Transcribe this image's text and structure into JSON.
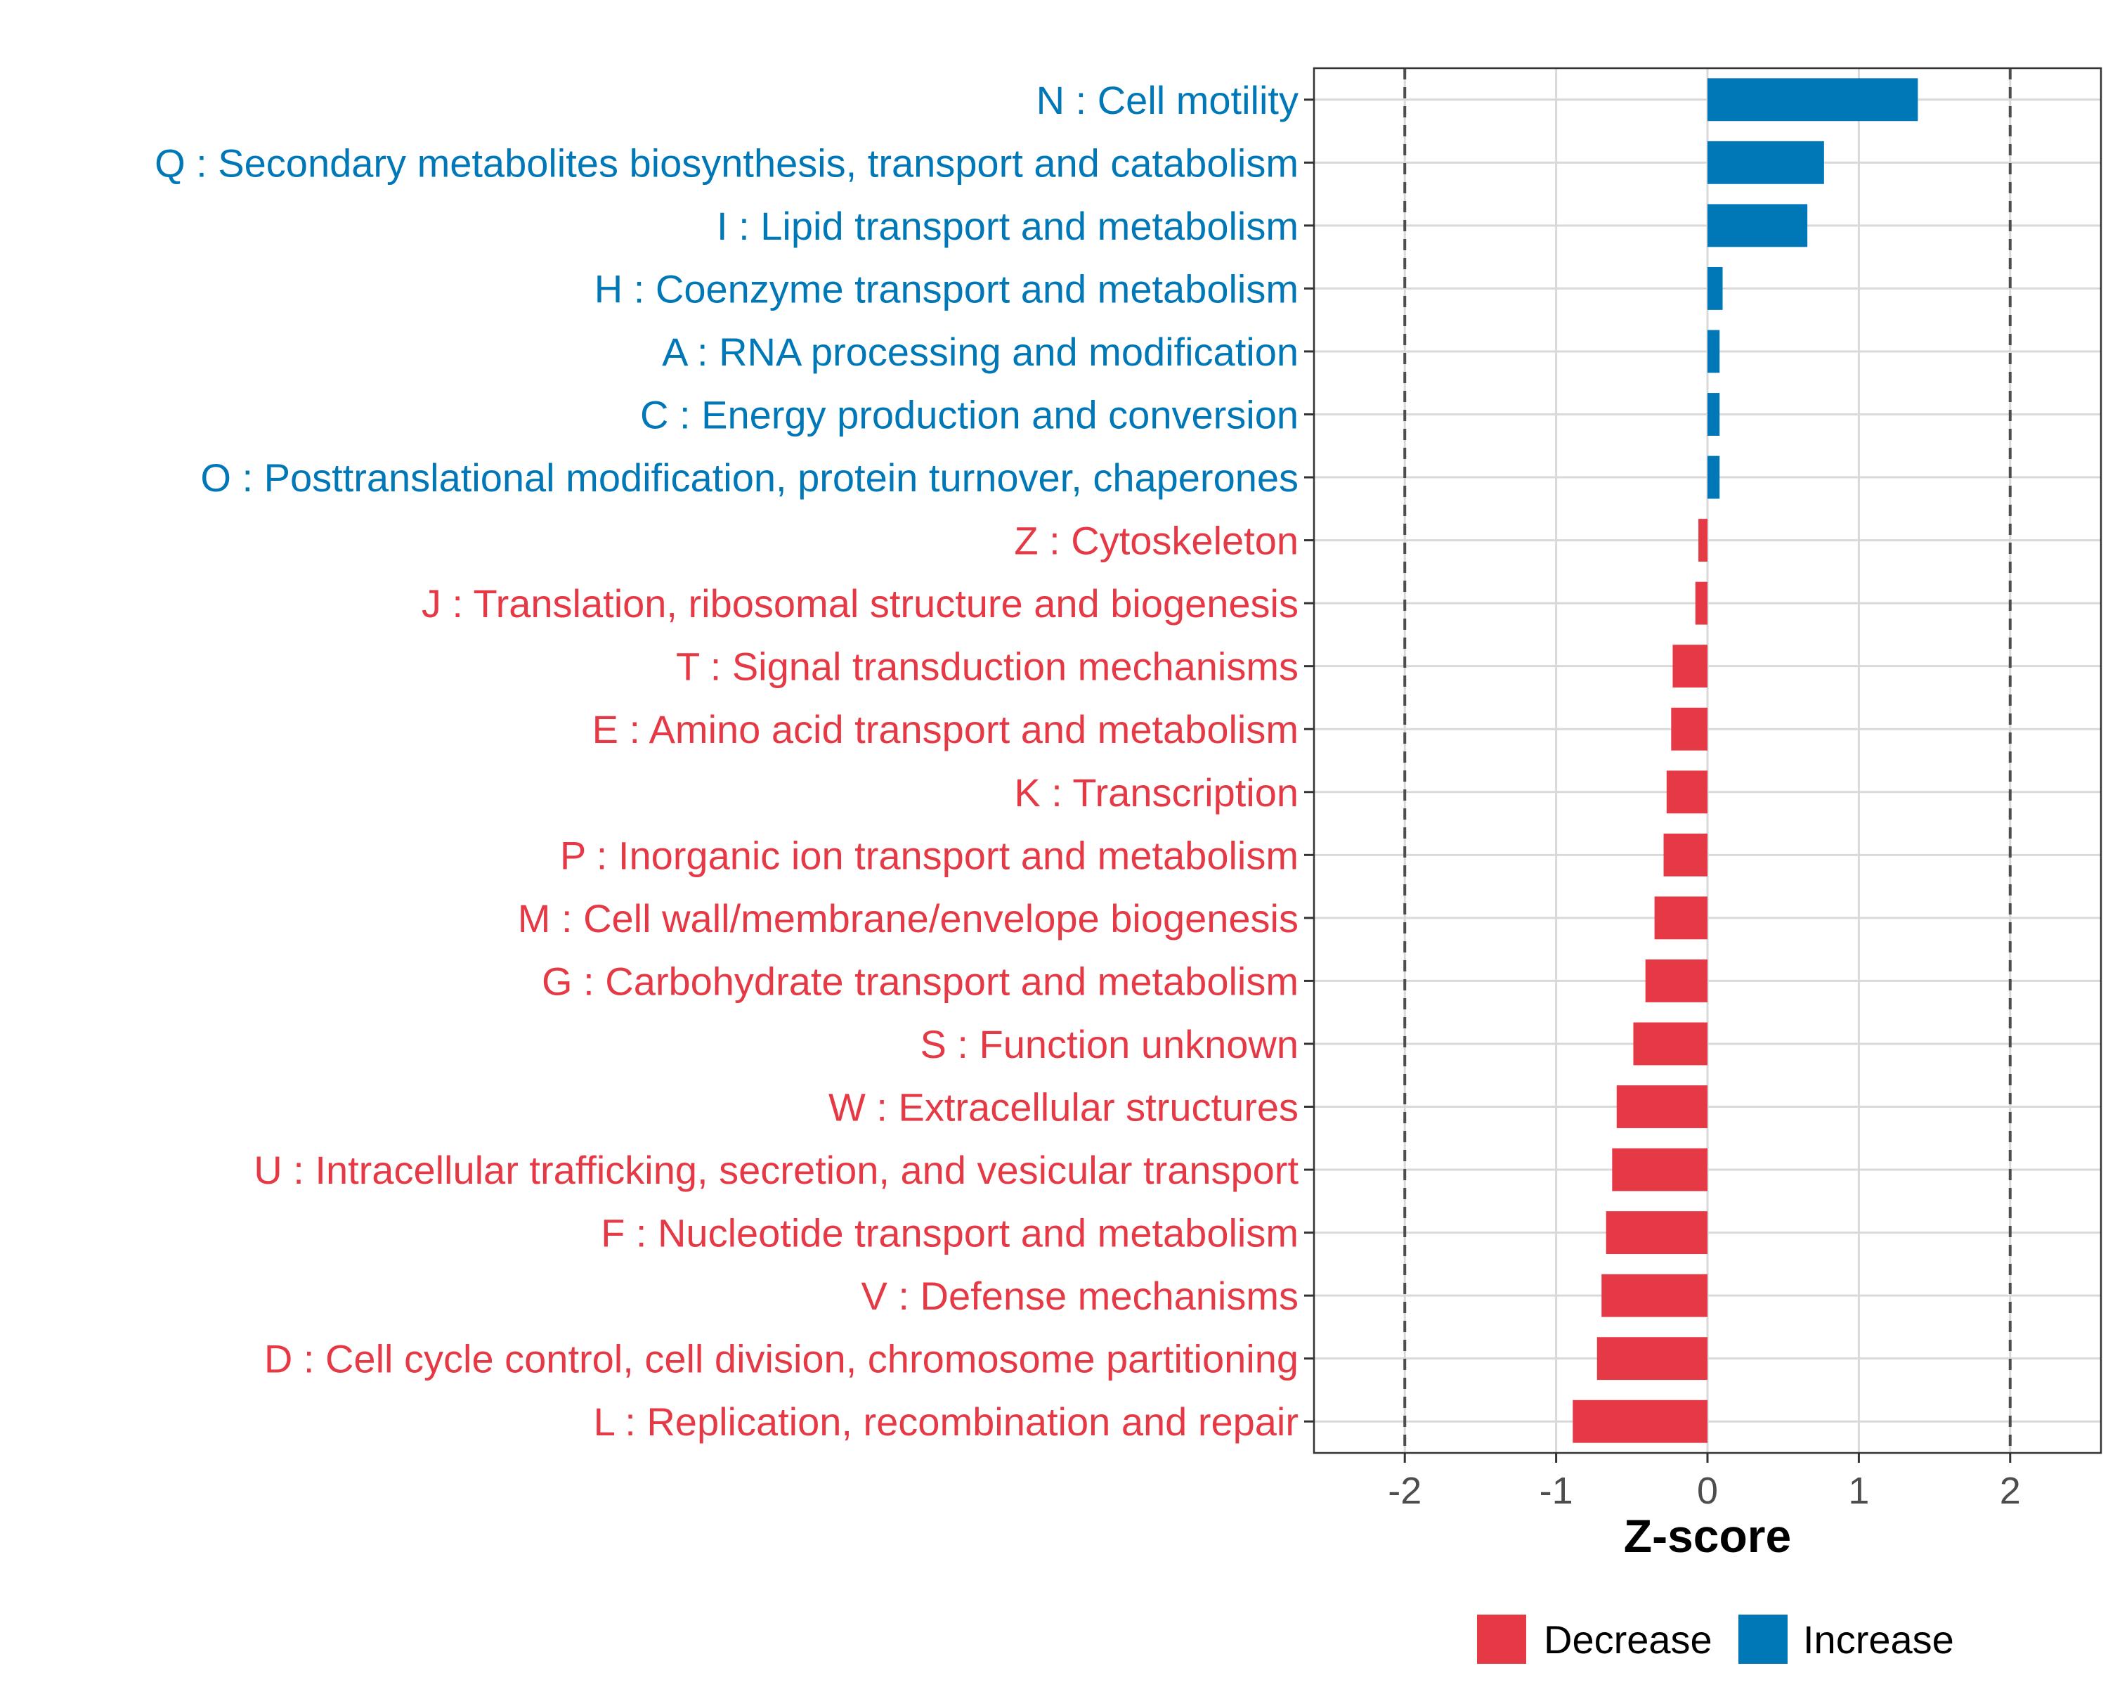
{
  "chart_data": {
    "type": "bar",
    "orientation": "horizontal",
    "xlabel": "Z-score",
    "ylabel": "",
    "xlim": [
      -2.6,
      2.6
    ],
    "xticks": [
      -2,
      -1,
      0,
      1,
      2
    ],
    "reference_lines": [
      -2,
      2
    ],
    "grid": true,
    "legend_position": "bottom",
    "colors": {
      "Decrease": "#e63946",
      "Increase": "#0077b6"
    },
    "legend": [
      {
        "label": "Decrease",
        "color": "#e63946"
      },
      {
        "label": "Increase",
        "color": "#0077b6"
      }
    ],
    "categories": [
      "N : Cell motility",
      "Q : Secondary metabolites biosynthesis, transport and catabolism",
      "I : Lipid transport and metabolism",
      "H : Coenzyme transport and metabolism",
      "A : RNA processing and modification",
      "C : Energy production and conversion",
      "O : Posttranslational modification, protein turnover, chaperones",
      "Z : Cytoskeleton",
      "J : Translation, ribosomal structure and biogenesis",
      "T : Signal transduction mechanisms",
      "E : Amino acid transport and metabolism",
      "K : Transcription",
      "P : Inorganic ion transport and metabolism",
      "M : Cell wall/membrane/envelope biogenesis",
      "G : Carbohydrate transport and metabolism",
      "S : Function unknown",
      "W : Extracellular structures",
      "U : Intracellular trafficking, secretion, and vesicular transport",
      "F : Nucleotide transport and metabolism",
      "V : Defense mechanisms",
      "D : Cell cycle control, cell division, chromosome partitioning",
      "L : Replication, recombination and repair"
    ],
    "values": [
      1.39,
      0.77,
      0.66,
      0.1,
      0.08,
      0.08,
      0.08,
      -0.06,
      -0.08,
      -0.23,
      -0.24,
      -0.27,
      -0.29,
      -0.35,
      -0.41,
      -0.49,
      -0.6,
      -0.63,
      -0.67,
      -0.7,
      -0.73,
      -0.89
    ],
    "groups": [
      "Increase",
      "Increase",
      "Increase",
      "Increase",
      "Increase",
      "Increase",
      "Increase",
      "Decrease",
      "Decrease",
      "Decrease",
      "Decrease",
      "Decrease",
      "Decrease",
      "Decrease",
      "Decrease",
      "Decrease",
      "Decrease",
      "Decrease",
      "Decrease",
      "Decrease",
      "Decrease",
      "Decrease"
    ]
  }
}
